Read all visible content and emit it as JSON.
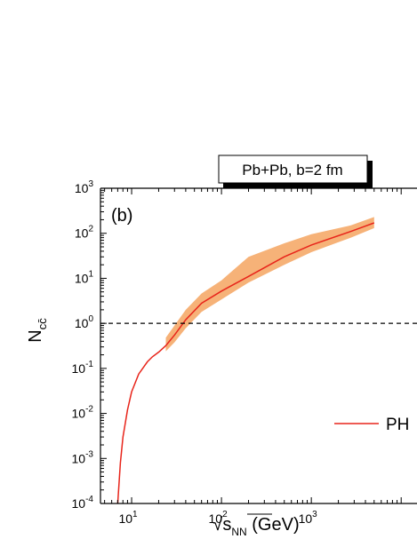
{
  "chart_data": {
    "type": "line",
    "title": "Pb+Pb, b=2 fm",
    "panel_label": "(b)",
    "xlabel": {
      "main": "√s",
      "sub": "NN",
      "unit": " (GeV)"
    },
    "ylabel": {
      "main": "N",
      "sub": "cc̄"
    },
    "x_scale": "log",
    "y_scale": "log",
    "xlim": [
      4.5,
      15000
    ],
    "ylim": [
      0.0001,
      1000
    ],
    "x_ticks": [
      {
        "value": 10,
        "base": "10",
        "exp": "1"
      },
      {
        "value": 100,
        "base": "10",
        "exp": "2"
      },
      {
        "value": 1000,
        "base": "10",
        "exp": "3"
      }
    ],
    "y_ticks": [
      {
        "value": 1000,
        "base": "10",
        "exp": "3"
      },
      {
        "value": 100,
        "base": "10",
        "exp": "2"
      },
      {
        "value": 10,
        "base": "10",
        "exp": "1"
      },
      {
        "value": 1,
        "base": "10",
        "exp": "0"
      },
      {
        "value": 0.1,
        "base": "10",
        "exp": "-1"
      },
      {
        "value": 0.01,
        "base": "10",
        "exp": "-2"
      },
      {
        "value": 0.001,
        "base": "10",
        "exp": "-3"
      },
      {
        "value": 0.0001,
        "base": "10",
        "exp": "-4"
      }
    ],
    "reference_line": {
      "y": 1,
      "style": "dashed",
      "color": "#000000"
    },
    "series": [
      {
        "name": "PH",
        "color": "#e8251b",
        "x": [
          7,
          7.5,
          8,
          9,
          10,
          12,
          15,
          17,
          20,
          24,
          30,
          40,
          60,
          100,
          200,
          500,
          1000,
          2760,
          5000
        ],
        "y": [
          0.0001,
          0.0008,
          0.003,
          0.012,
          0.03,
          0.075,
          0.14,
          0.18,
          0.23,
          0.32,
          0.55,
          1.2,
          2.8,
          5.2,
          11,
          30,
          55,
          110,
          170
        ]
      }
    ],
    "band": {
      "color": "#f6b278",
      "x": [
        24,
        30,
        40,
        60,
        100,
        200,
        500,
        1000,
        2760,
        5000
      ],
      "upper": [
        0.48,
        0.9,
        2.0,
        4.6,
        9.0,
        30,
        60,
        95,
        150,
        230
      ],
      "lower": [
        0.24,
        0.38,
        0.78,
        1.8,
        3.4,
        8.0,
        20,
        38,
        80,
        130
      ]
    },
    "legend": {
      "position": "bottom-right",
      "label": "PH"
    }
  }
}
